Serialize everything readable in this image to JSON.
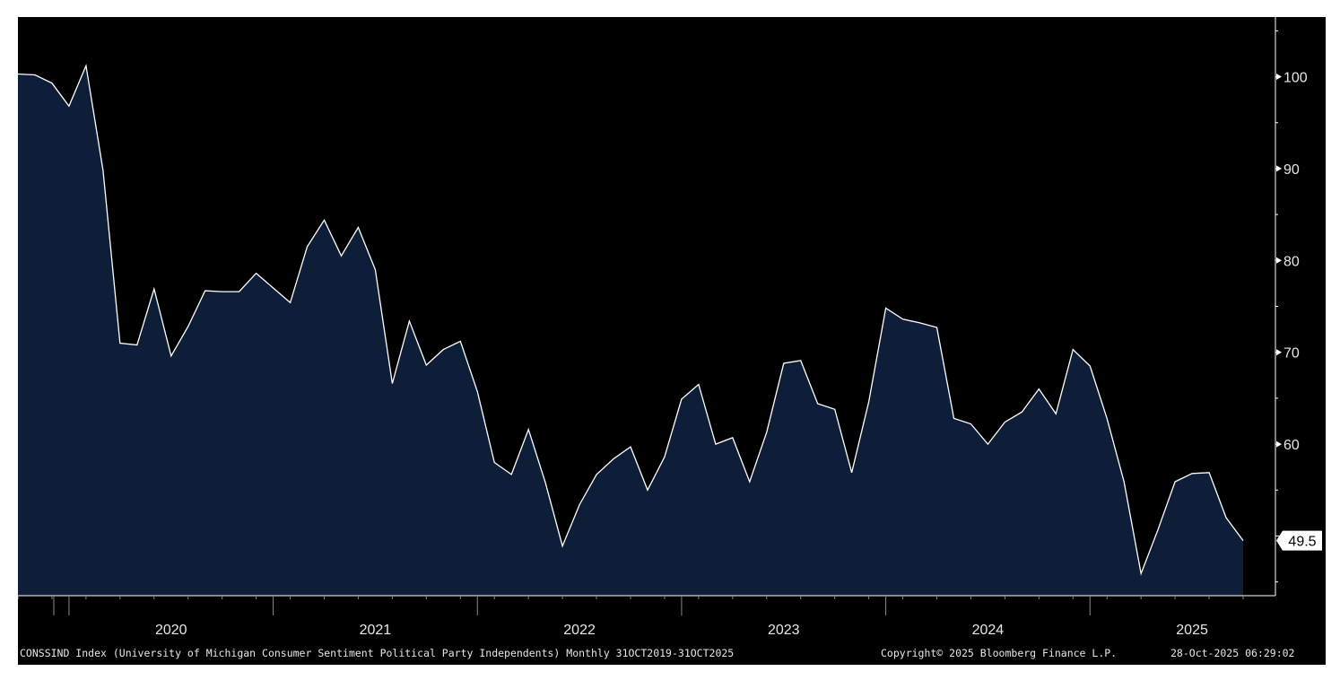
{
  "chart_data": {
    "type": "area",
    "title": "",
    "xlabel": "",
    "ylabel": "",
    "x_start": "2019-10",
    "x_end": "2025-10",
    "x_tick_labels": [
      "2020",
      "2021",
      "2022",
      "2023",
      "2024",
      "2025"
    ],
    "y_ticks": [
      60,
      70,
      80,
      90,
      100
    ],
    "ylim": [
      43.5,
      106.5
    ],
    "grid": false,
    "legend": "none",
    "last_value_label": "49.5",
    "colors": {
      "background": "#000000",
      "fill": "#0f1e38",
      "line": "#ffffff",
      "axis": "#ffffff",
      "text": "#e6e6e6"
    },
    "series": [
      {
        "values": [
          100.3,
          100.2,
          99.3,
          96.8,
          101.2,
          89.8,
          71.0,
          70.8,
          76.9,
          69.6,
          72.8,
          76.7,
          76.6,
          76.6,
          78.6,
          77.0,
          75.4,
          81.5,
          84.4,
          80.5,
          83.6,
          79.0,
          66.6,
          73.4,
          68.6,
          70.3,
          71.2,
          65.7,
          58.0,
          56.7,
          61.6,
          55.8,
          48.9,
          53.4,
          56.7,
          58.4,
          59.7,
          55.0,
          58.6,
          64.9,
          66.5,
          60.0,
          60.7,
          55.9,
          61.3,
          68.8,
          69.1,
          64.4,
          63.8,
          56.9,
          64.6,
          74.8,
          73.6,
          73.2,
          72.7,
          62.8,
          62.2,
          60.0,
          62.4,
          63.5,
          66.0,
          63.3,
          70.3,
          68.5,
          62.8,
          55.9,
          45.9,
          50.7,
          55.9,
          56.8,
          56.9,
          52.0,
          49.5
        ]
      }
    ],
    "footer": {
      "description": "CONSSIND Index (University of Michigan Consumer Sentiment Political Party Independents) Monthly 31OCT2019-31OCT2025",
      "copyright": "Copyright© 2025 Bloomberg Finance L.P.",
      "timestamp": "28-Oct-2025 06:29:02"
    }
  }
}
